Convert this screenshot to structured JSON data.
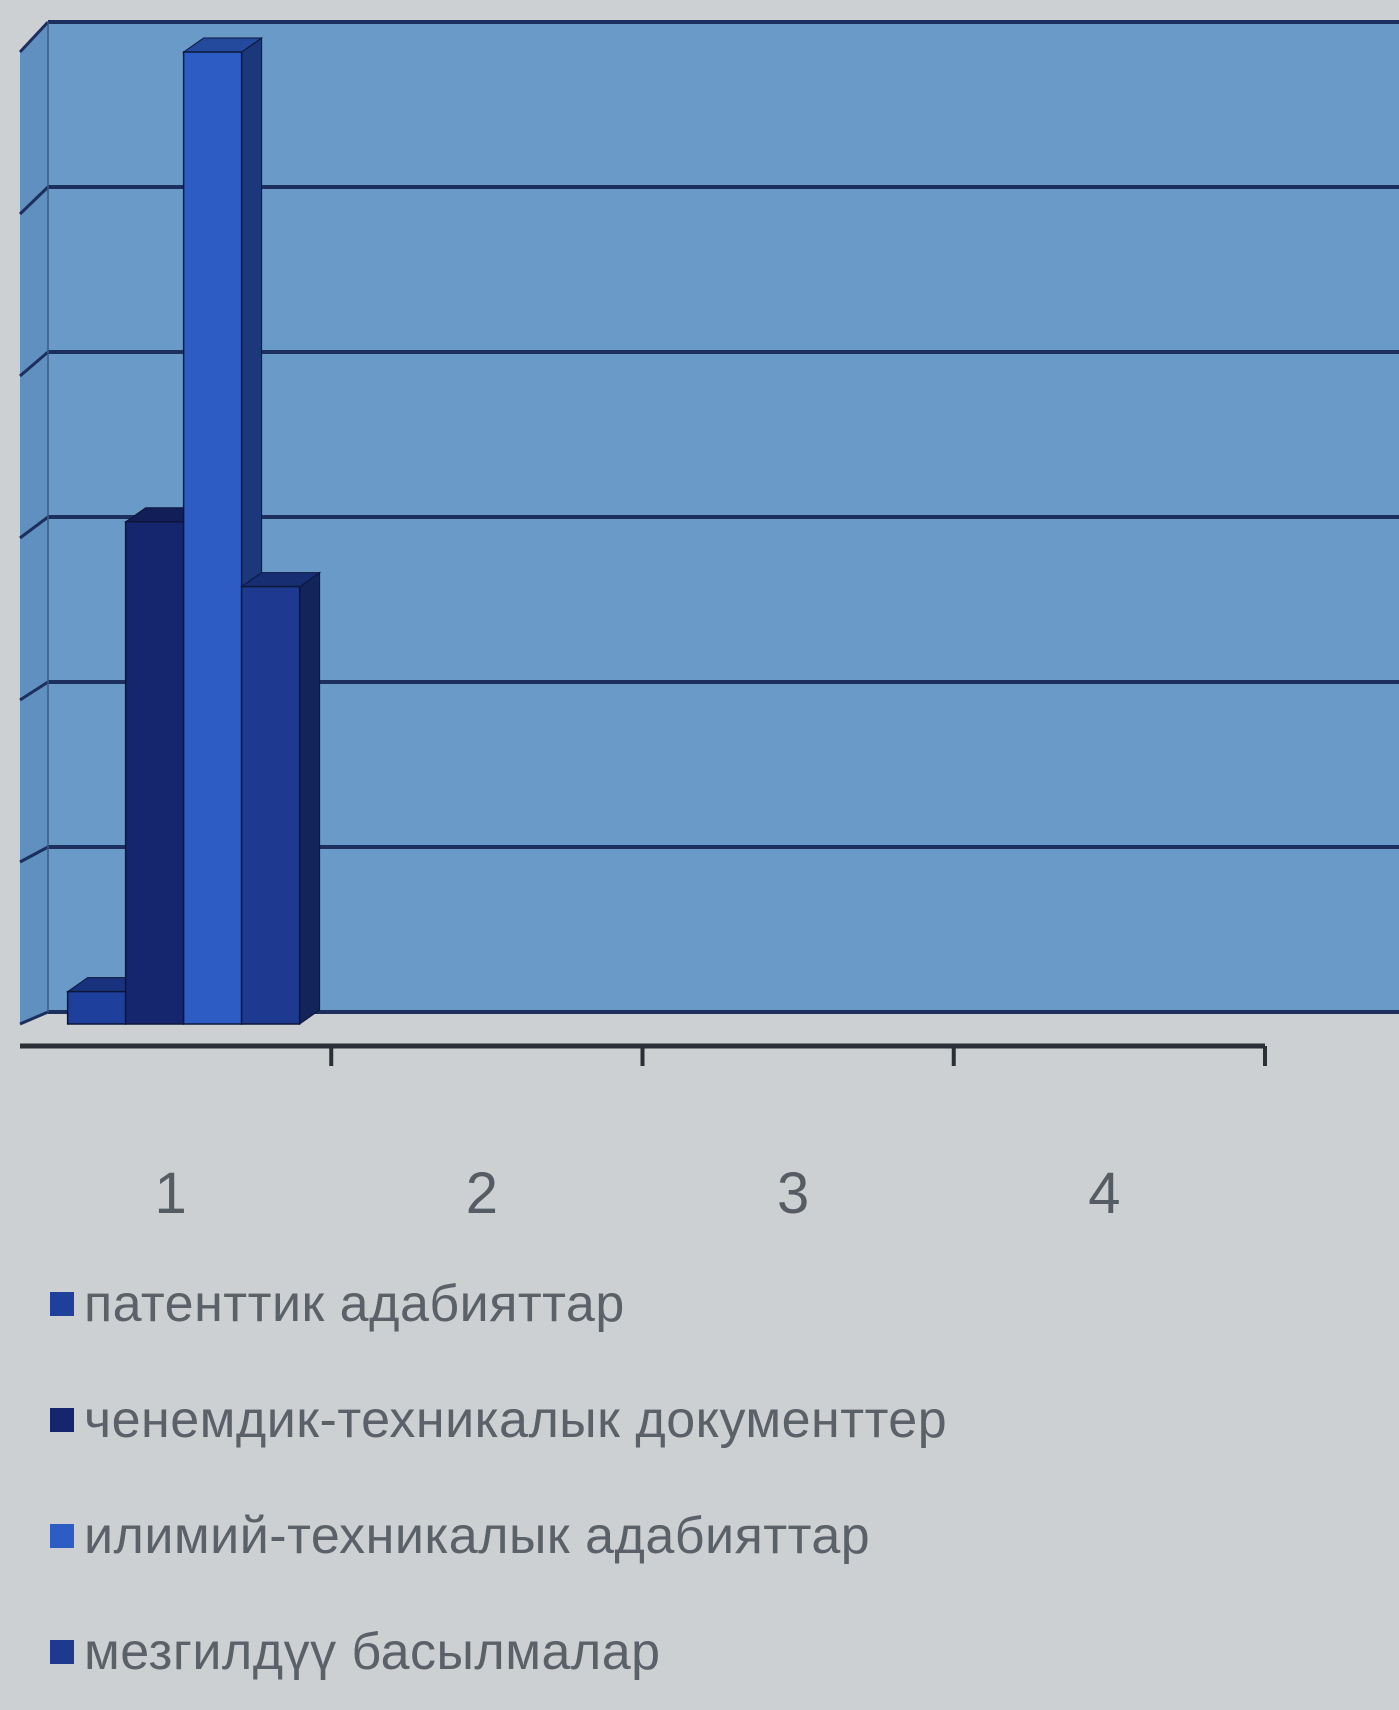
{
  "chart_data": {
    "type": "bar",
    "style": "3d-clustered-column",
    "title": "",
    "xlabel": "",
    "ylabel": "",
    "categories": [
      "1",
      "2",
      "3",
      "4"
    ],
    "ylim": [
      0,
      6
    ],
    "grid": true,
    "y_tick_labels_shown": false,
    "legend_position": "bottom",
    "series": [
      {
        "name": "патенттик адабияттар",
        "values": [
          0.2,
          0,
          0,
          0
        ],
        "color": "#1f3f9c"
      },
      {
        "name": "ченемдик-техникалык документтер",
        "values": [
          3.1,
          0,
          0,
          0
        ],
        "color": "#15266e"
      },
      {
        "name": "илимий-техникалык адабияттар",
        "values": [
          6.0,
          0,
          0,
          0
        ],
        "color": "#2c5cc4"
      },
      {
        "name": "мезгилдүү басылмалар",
        "values": [
          2.7,
          0,
          0,
          0
        ],
        "color": "#1d3a90"
      }
    ],
    "colors": {
      "plot_wall": "#6a9bc8",
      "side_wall": "#5f90bf",
      "gridline": "#1c2f5e",
      "axis": "#2b2f36",
      "background": "#cdd0d3"
    }
  }
}
